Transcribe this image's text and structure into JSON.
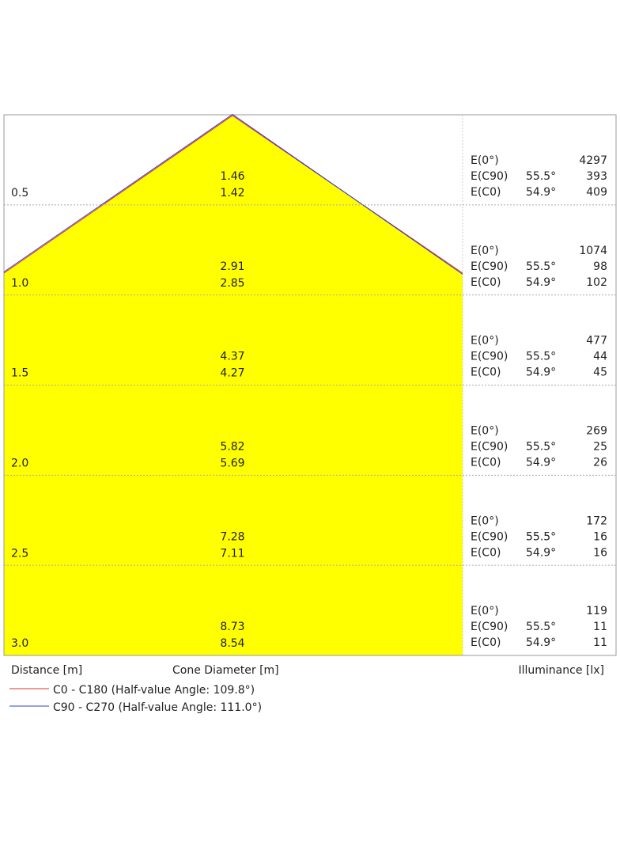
{
  "rows": [
    {
      "distance": "0.5",
      "diameters": [
        "1.46",
        "1.42"
      ],
      "illuminance": [
        {
          "label": "E(0°)",
          "value": "4297"
        },
        {
          "label": "E(C90)",
          "angle": "55.5°",
          "value": "393"
        },
        {
          "label": "E(C0)",
          "angle": "54.9°",
          "value": "409"
        }
      ]
    },
    {
      "distance": "1.0",
      "diameters": [
        "2.91",
        "2.85"
      ],
      "illuminance": [
        {
          "label": "E(0°)",
          "value": "1074"
        },
        {
          "label": "E(C90)",
          "angle": "55.5°",
          "value": "98"
        },
        {
          "label": "E(C0)",
          "angle": "54.9°",
          "value": "102"
        }
      ]
    },
    {
      "distance": "1.5",
      "diameters": [
        "4.37",
        "4.27"
      ],
      "illuminance": [
        {
          "label": "E(0°)",
          "value": "477"
        },
        {
          "label": "E(C90)",
          "angle": "55.5°",
          "value": "44"
        },
        {
          "label": "E(C0)",
          "angle": "54.9°",
          "value": "45"
        }
      ]
    },
    {
      "distance": "2.0",
      "diameters": [
        "5.82",
        "5.69"
      ],
      "illuminance": [
        {
          "label": "E(0°)",
          "value": "269"
        },
        {
          "label": "E(C90)",
          "angle": "55.5°",
          "value": "25"
        },
        {
          "label": "E(C0)",
          "angle": "54.9°",
          "value": "26"
        }
      ]
    },
    {
      "distance": "2.5",
      "diameters": [
        "7.28",
        "7.11"
      ],
      "illuminance": [
        {
          "label": "E(0°)",
          "value": "172"
        },
        {
          "label": "E(C90)",
          "angle": "55.5°",
          "value": "16"
        },
        {
          "label": "E(C0)",
          "angle": "54.9°",
          "value": "16"
        }
      ]
    },
    {
      "distance": "3.0",
      "diameters": [
        "8.73",
        "8.54"
      ],
      "illuminance": [
        {
          "label": "E(0°)",
          "value": "119"
        },
        {
          "label": "E(C90)",
          "angle": "55.5°",
          "value": "11"
        },
        {
          "label": "E(C0)",
          "angle": "54.9°",
          "value": "11"
        }
      ]
    }
  ],
  "footer": {
    "distance": "Distance [m]",
    "diameter": "Cone Diameter [m]",
    "illuminance": "Illuminance [lx]"
  },
  "legend": [
    {
      "name": "C0 - C180 (Half-value Angle: 109.8°)",
      "color": "#e03030"
    },
    {
      "name": "C90 - C270 (Half-value Angle: 111.0°)",
      "color": "#3040d0"
    }
  ]
}
